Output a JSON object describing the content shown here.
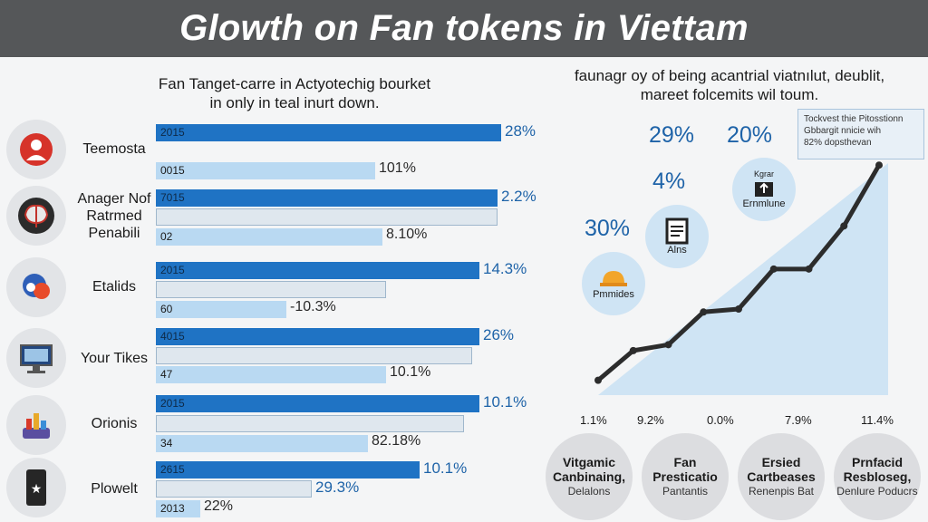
{
  "header": {
    "title": "Glowth on Fan tokens in Viettam"
  },
  "left_panel": {
    "title_line1": "Fan Tanget-carre in Actyotechig bourket",
    "title_line2": "in only in teal inurt down.",
    "categories": [
      {
        "label": "Teemosta",
        "icon": "person-icon",
        "bars": [
          {
            "tag": "2015",
            "value": 0.93,
            "style": "dark",
            "pct": "28%"
          },
          {
            "tag": "0015",
            "value": 0.59,
            "style": "light",
            "pct": "101%"
          }
        ]
      },
      {
        "label": "Anager Nof Ratrmed Penabili",
        "icon": "brain-icon",
        "bars": [
          {
            "tag": "7015",
            "value": 0.92,
            "style": "dark",
            "pct": "2.2%"
          },
          {
            "tag": "",
            "value": 0.92,
            "style": "mid",
            "pct": ""
          },
          {
            "tag": "02",
            "value": 0.61,
            "style": "light",
            "pct": "8.10%"
          }
        ]
      },
      {
        "label": "Etalids",
        "icon": "chat-icon",
        "bars": [
          {
            "tag": "2015",
            "value": 0.87,
            "style": "dark",
            "pct": "14.3%"
          },
          {
            "tag": "",
            "value": 0.62,
            "style": "mid",
            "pct": ""
          },
          {
            "tag": "60",
            "value": 0.35,
            "style": "light",
            "pct": "-10.3%"
          }
        ]
      },
      {
        "label": "Your Tikes",
        "icon": "monitor-icon",
        "bars": [
          {
            "tag": "4015",
            "value": 0.87,
            "style": "dark",
            "pct": "26%"
          },
          {
            "tag": "",
            "value": 0.85,
            "style": "mid",
            "pct": ""
          },
          {
            "tag": "47",
            "value": 0.62,
            "style": "light",
            "pct": "10.1%"
          }
        ]
      },
      {
        "label": "Orionis",
        "icon": "chart-stack-icon",
        "bars": [
          {
            "tag": "2015",
            "value": 0.87,
            "style": "dark",
            "pct": "10.1%"
          },
          {
            "tag": "",
            "value": 0.83,
            "style": "mid",
            "pct": ""
          },
          {
            "tag": "34",
            "value": 0.57,
            "style": "light",
            "pct": "82.18%"
          }
        ]
      },
      {
        "label": "Plowelt",
        "icon": "phone-icon",
        "bars": [
          {
            "tag": "2615",
            "value": 0.71,
            "style": "dark",
            "pct": "10.1%"
          },
          {
            "tag": "",
            "value": 0.42,
            "style": "mid",
            "pct": "29.3%"
          },
          {
            "tag": "2013",
            "value": 0.12,
            "style": "light",
            "pct": "22%"
          }
        ]
      }
    ]
  },
  "right_panel": {
    "title_line1": "faunagr oy of being acantrial viatnılut, deublit,",
    "title_line2": "mareet folcemits wil toum.",
    "big_pcts": [
      "29%",
      "20%",
      "4%",
      "30%"
    ],
    "bubbles": [
      {
        "label": "Ernmlune",
        "icon": "box-icon",
        "top_text": "Kgrar"
      },
      {
        "label": "Alns",
        "icon": "document-icon",
        "top_text": ""
      },
      {
        "label": "Pmmides",
        "icon": "hardhat-icon",
        "top_text": ""
      }
    ],
    "callout": {
      "line1": "Tockvest thie Pitosstionn",
      "line2": "Gbbargit nnicie wih",
      "line3": "82% dopsthevan"
    },
    "bottom_circles": [
      {
        "title": "Vitgamic Canbinaing,",
        "sub": "Delalons"
      },
      {
        "title": "Fan Presticatio",
        "sub": "Pantantis"
      },
      {
        "title": "Ersied Cartbeases",
        "sub": "Renenpis Bat"
      },
      {
        "title": "Prnfacid Resbloseg,",
        "sub": "Denlure Poducrs"
      }
    ]
  },
  "chart_data": {
    "type": "area",
    "title": "",
    "x_labels": [
      "1.1%",
      "9.2%",
      "0.0%",
      "7.9%",
      "11.4%"
    ],
    "series": [
      {
        "values": [
          1,
          3,
          3.4,
          5.6,
          5.8,
          8.5,
          8.5,
          11.4,
          15.5
        ]
      }
    ],
    "accent_color": "#1f73c4",
    "fill_color": "#cfe4f4"
  }
}
